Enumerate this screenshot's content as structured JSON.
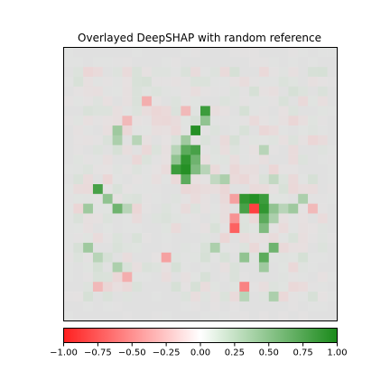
{
  "chart_data": {
    "type": "heatmap",
    "title": "Overlayed DeepSHAP with random reference",
    "grid": "off",
    "image": {
      "rows": 28,
      "cols": 28,
      "base_color": "#e0e0e0",
      "attribution_hotspots": [
        {
          "row": 8,
          "col": 13,
          "value": 0.95
        },
        {
          "row": 6,
          "col": 14,
          "value": 0.85
        },
        {
          "row": 7,
          "col": 14,
          "value": 0.6
        },
        {
          "row": 9,
          "col": 12,
          "value": 0.55
        },
        {
          "row": 10,
          "col": 12,
          "value": 0.75
        },
        {
          "row": 10,
          "col": 13,
          "value": 0.8
        },
        {
          "row": 11,
          "col": 12,
          "value": 0.9
        },
        {
          "row": 11,
          "col": 13,
          "value": 0.7
        },
        {
          "row": 12,
          "col": 11,
          "value": 0.85
        },
        {
          "row": 12,
          "col": 12,
          "value": 0.95
        },
        {
          "row": 12,
          "col": 13,
          "value": 0.65
        },
        {
          "row": 13,
          "col": 12,
          "value": 0.75
        },
        {
          "row": 11,
          "col": 11,
          "value": 0.6
        },
        {
          "row": 12,
          "col": 14,
          "value": 0.45
        },
        {
          "row": 13,
          "col": 15,
          "value": 0.4
        },
        {
          "row": 10,
          "col": 11,
          "value": 0.45
        },
        {
          "row": 14,
          "col": 3,
          "value": 0.8
        },
        {
          "row": 15,
          "col": 4,
          "value": 0.6
        },
        {
          "row": 16,
          "col": 5,
          "value": 0.7
        },
        {
          "row": 16,
          "col": 2,
          "value": 0.55
        },
        {
          "row": 16,
          "col": 6,
          "value": 0.45
        },
        {
          "row": 15,
          "col": 18,
          "value": 0.9
        },
        {
          "row": 15,
          "col": 19,
          "value": 0.95
        },
        {
          "row": 15,
          "col": 20,
          "value": 0.85
        },
        {
          "row": 16,
          "col": 18,
          "value": 0.8
        },
        {
          "row": 16,
          "col": 19,
          "value": -0.85
        },
        {
          "row": 16,
          "col": 20,
          "value": 0.9
        },
        {
          "row": 16,
          "col": 21,
          "value": 0.6
        },
        {
          "row": 17,
          "col": 20,
          "value": 0.75
        },
        {
          "row": 17,
          "col": 21,
          "value": 0.5
        },
        {
          "row": 17,
          "col": 17,
          "value": -0.6
        },
        {
          "row": 18,
          "col": 17,
          "value": -0.75
        },
        {
          "row": 18,
          "col": 20,
          "value": 0.65
        },
        {
          "row": 15,
          "col": 17,
          "value": -0.55
        },
        {
          "row": 16,
          "col": 22,
          "value": 0.45
        },
        {
          "row": 16,
          "col": 23,
          "value": 0.55
        },
        {
          "row": 15,
          "col": 24,
          "value": 0.5
        },
        {
          "row": 16,
          "col": 25,
          "value": -0.45
        },
        {
          "row": 20,
          "col": 21,
          "value": 0.7
        },
        {
          "row": 21,
          "col": 20,
          "value": 0.75
        },
        {
          "row": 22,
          "col": 20,
          "value": 0.55
        },
        {
          "row": 21,
          "col": 18,
          "value": 0.6
        },
        {
          "row": 20,
          "col": 15,
          "value": 0.5
        },
        {
          "row": 20,
          "col": 2,
          "value": 0.55
        },
        {
          "row": 21,
          "col": 3,
          "value": 0.45
        },
        {
          "row": 21,
          "col": 10,
          "value": -0.55
        },
        {
          "row": 22,
          "col": 5,
          "value": 0.5
        },
        {
          "row": 23,
          "col": 6,
          "value": -0.5
        },
        {
          "row": 24,
          "col": 18,
          "value": -0.65
        },
        {
          "row": 25,
          "col": 18,
          "value": 0.45
        },
        {
          "row": 25,
          "col": 21,
          "value": 0.5
        },
        {
          "row": 24,
          "col": 3,
          "value": -0.45
        },
        {
          "row": 8,
          "col": 5,
          "value": 0.55
        },
        {
          "row": 9,
          "col": 5,
          "value": 0.5
        },
        {
          "row": 7,
          "col": 6,
          "value": -0.45
        },
        {
          "row": 5,
          "col": 8,
          "value": -0.5
        },
        {
          "row": 6,
          "col": 12,
          "value": -0.45
        },
        {
          "row": 9,
          "col": 7,
          "value": 0.45
        },
        {
          "row": 13,
          "col": 16,
          "value": 0.5
        },
        {
          "row": 10,
          "col": 20,
          "value": 0.45
        },
        {
          "row": 13,
          "col": 21,
          "value": 0.4
        }
      ]
    },
    "colorbar": {
      "orientation": "horizontal",
      "placement": "bottom",
      "range": [
        -1.0,
        1.0
      ],
      "colors": {
        "negative": "#ff2020",
        "neutral": "#ffffff",
        "positive": "#1a8a1a"
      },
      "ticks": [
        -1.0,
        -0.75,
        -0.5,
        -0.25,
        0.0,
        0.25,
        0.5,
        0.75,
        1.0
      ],
      "tick_labels": [
        "−1.00",
        "−0.75",
        "−0.50",
        "−0.25",
        "0.00",
        "0.25",
        "0.50",
        "0.75",
        "1.00"
      ]
    }
  }
}
